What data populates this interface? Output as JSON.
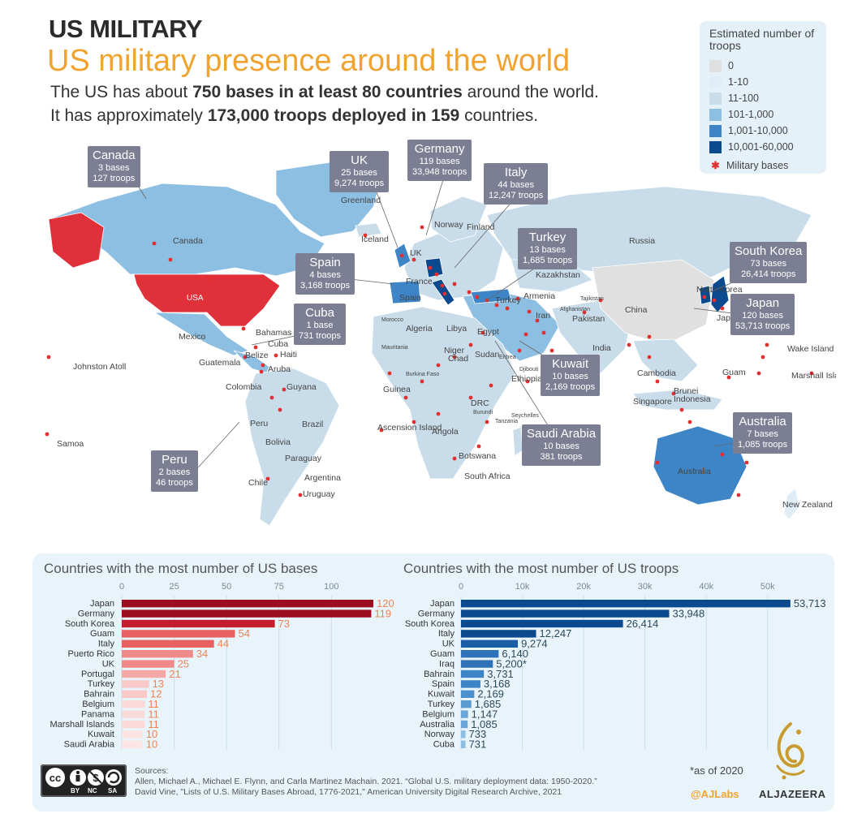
{
  "header": {
    "kicker": "US MILITARY",
    "headline": "US military presence around the world",
    "intro_line1": {
      "pre": "The US has about ",
      "bold": "750 bases in at least 80 countries",
      "post": " around the world."
    },
    "intro_line2": {
      "pre": "It has approximately ",
      "bold": "173,000 troops deployed in 159",
      "post": " countries."
    }
  },
  "legend": {
    "title": "Estimated number of troops",
    "items": [
      {
        "label": "0",
        "color": "#e0e0e0"
      },
      {
        "label": "1-10",
        "color": "#deedf6"
      },
      {
        "label": "11-100",
        "color": "#c9dcea"
      },
      {
        "label": "101-1,000",
        "color": "#8dbfe2"
      },
      {
        "label": "1,001-10,000",
        "color": "#3d85c6"
      },
      {
        "label": "10,001-60,000",
        "color": "#0b4a8f"
      }
    ],
    "bases_label": "Military bases",
    "bases_color": "#e03030",
    "usa_color": "#e0303a"
  },
  "map": {
    "callouts": [
      {
        "name": "Canada",
        "bases": "3 bases",
        "troops": "127 troops"
      },
      {
        "name": "UK",
        "bases": "25 bases",
        "troops": "9,274 troops"
      },
      {
        "name": "Germany",
        "bases": "119 bases",
        "troops": "33,948 troops"
      },
      {
        "name": "Italy",
        "bases": "44 bases",
        "troops": "12,247 troops"
      },
      {
        "name": "Spain",
        "bases": "4 bases",
        "troops": "3,168 troops"
      },
      {
        "name": "Turkey",
        "bases": "13 bases",
        "troops": "1,685 troops"
      },
      {
        "name": "South Korea",
        "bases": "73 bases",
        "troops": "26,414 troops"
      },
      {
        "name": "Japan",
        "bases": "120 bases",
        "troops": "53,713 troops"
      },
      {
        "name": "Cuba",
        "bases": "1 base",
        "troops": "731 troops"
      },
      {
        "name": "Kuwait",
        "bases": "10 bases",
        "troops": "2,169 troops"
      },
      {
        "name": "Saudi Arabia",
        "bases": "10 bases",
        "troops": "381 troops"
      },
      {
        "name": "Australia",
        "bases": "7 bases",
        "troops": "1,085 troops"
      },
      {
        "name": "Peru",
        "bases": "2 bases",
        "troops": "46 troops"
      }
    ],
    "labels": [
      "Greenland",
      "Canada",
      "USA",
      "Iceland",
      "Norway",
      "Finland",
      "Russia",
      "UK",
      "France",
      "Spain",
      "Kazakhstan",
      "Turkey",
      "Armenia",
      "China",
      "North Korea",
      "Japan",
      "Tajikistan",
      "Afghanistan",
      "Pakistan",
      "Iran",
      "India",
      "Morocco",
      "Algeria",
      "Libya",
      "Egypt",
      "Mauritania",
      "Niger",
      "Chad",
      "Sudan",
      "Eritrea",
      "Djibouti",
      "Burkina Faso",
      "Guinea",
      "Ethiopia",
      "Seychelles",
      "DRC",
      "Burundi",
      "Tanzania",
      "Angola",
      "Botswana",
      "South Africa",
      "Ascension Island",
      "Mexico",
      "Bahamas",
      "Cuba",
      "Haiti",
      "Belize",
      "Guatemala",
      "Aruba",
      "Colombia",
      "Guyana",
      "Peru",
      "Brazil",
      "Bolivia",
      "Paraguay",
      "Chile",
      "Argentina",
      "Uruguay",
      "Johnston Atoll",
      "Samoa",
      "Cambodia",
      "Brunei",
      "Singapore",
      "Indonesia",
      "Guam",
      "Wake Island",
      "Marshall Islands",
      "Australia",
      "New Zealand"
    ]
  },
  "chart_data": [
    {
      "type": "bar",
      "title": "Countries with the most number of US bases",
      "orientation": "horizontal",
      "categories": [
        "Japan",
        "Germany",
        "South Korea",
        "Guam",
        "Italy",
        "Puerto Rico",
        "UK",
        "Portugal",
        "Turkey",
        "Bahrain",
        "Belgium",
        "Panama",
        "Marshall Islands",
        "Kuwait",
        "Saudi Arabia"
      ],
      "values": [
        120,
        119,
        73,
        54,
        44,
        34,
        25,
        21,
        13,
        12,
        11,
        11,
        11,
        10,
        10
      ],
      "value_labels": [
        "120",
        "119",
        "73",
        "54",
        "44",
        "34",
        "25",
        "21",
        "13",
        "12",
        "11",
        "11",
        "11",
        "10",
        "10"
      ],
      "xlim": [
        0,
        120
      ],
      "ticks": [
        0,
        25,
        50,
        75,
        100
      ],
      "tick_labels": [
        "0",
        "25",
        "50",
        "75",
        "100"
      ],
      "colors": [
        "#9b0d1f",
        "#9b0d1f",
        "#c41e2e",
        "#e8605f",
        "#e8605f",
        "#f08a88",
        "#f08a88",
        "#f5a8a6",
        "#f8c9c7",
        "#f8c9c7",
        "#fadad9",
        "#fadad9",
        "#fadad9",
        "#fbe4e3",
        "#fbe4e3"
      ],
      "label_color": "#ec8454"
    },
    {
      "type": "bar",
      "title": "Countries with the most number of US troops",
      "orientation": "horizontal",
      "categories": [
        "Japan",
        "Germany",
        "South Korea",
        "Italy",
        "UK",
        "Guam",
        "Iraq",
        "Bahrain",
        "Spain",
        "Kuwait",
        "Turkey",
        "Belgium",
        "Australia",
        "Norway",
        "Cuba"
      ],
      "values": [
        53713,
        33948,
        26414,
        12247,
        9274,
        6140,
        5200,
        3731,
        3168,
        2169,
        1685,
        1147,
        1085,
        733,
        731
      ],
      "value_labels": [
        "53,713",
        "33,948",
        "26,414",
        "12,247",
        "9,274",
        "6,140",
        "5,200*",
        "3,731",
        "3,168",
        "2,169",
        "1,685",
        "1,147",
        "1,085",
        "733",
        "731"
      ],
      "xlim": [
        0,
        54000
      ],
      "ticks": [
        0,
        10000,
        20000,
        30000,
        40000,
        50000
      ],
      "tick_labels": [
        "0",
        "10k",
        "20k",
        "30k",
        "40k",
        "50k"
      ],
      "colors": [
        "#0b4a8f",
        "#0b4a8f",
        "#0b4a8f",
        "#0b4a8f",
        "#1a5ea6",
        "#2f72b8",
        "#2f72b8",
        "#3d85c6",
        "#3d85c6",
        "#4a90cc",
        "#5a9bd2",
        "#6aa6d8",
        "#6aa6d8",
        "#8dbfe2",
        "#8dbfe2"
      ],
      "label_color": "#2a4a5a"
    }
  ],
  "footer": {
    "sources_title": "Sources:",
    "source1": "Allen, Michael A., Michael E. Flynn, and Carla Martinez Machain. 2021. “Global U.S. military deployment data: 1950-2020.”",
    "source2": "David Vine, \"Lists of U.S. Military Bases Abroad, 1776-2021,\" American University Digital Research Archive, 2021",
    "as_of": "*as of 2020",
    "credit": "@AJLabs",
    "brand": "ALJAZEERA",
    "license": [
      "BY",
      "NC",
      "SA"
    ]
  }
}
